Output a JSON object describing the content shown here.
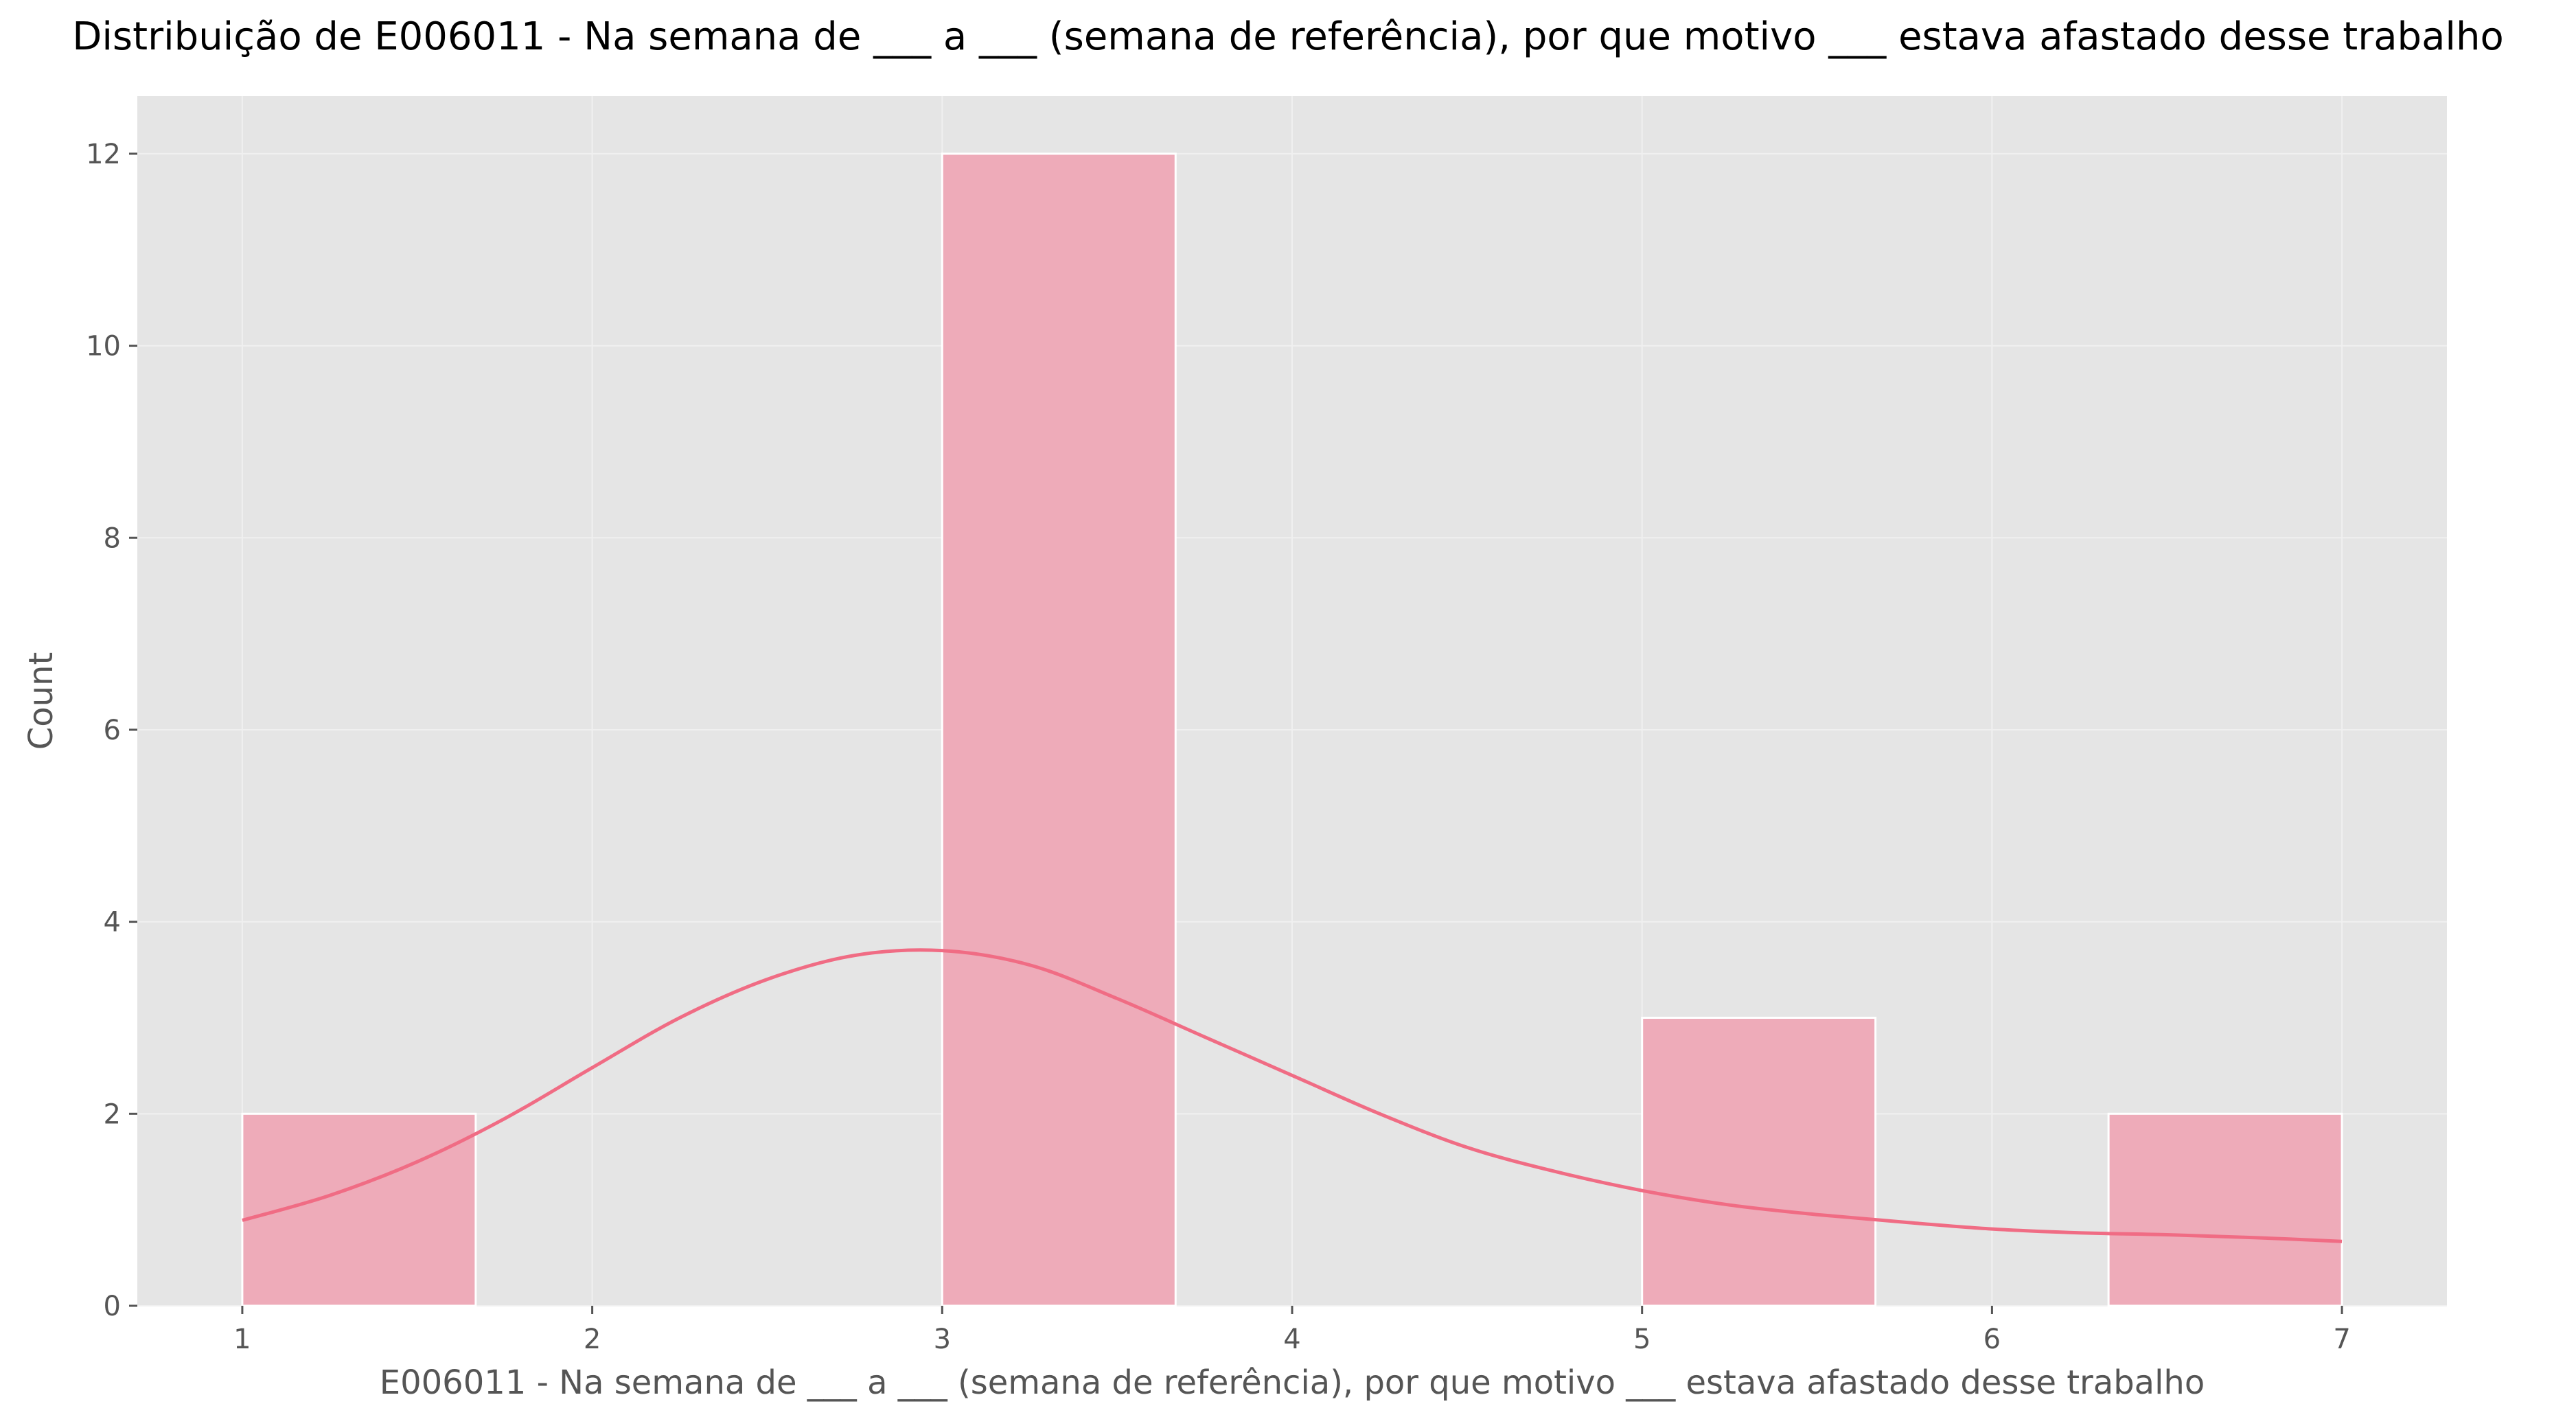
{
  "chart_data": {
    "type": "bar",
    "title": "Distribuição de E006011 - Na semana de ___ a ___ (semana de referência), por que motivo ___ estava afastado desse trabalho",
    "xlabel": "E006011 - Na semana de ___ a ___ (semana de referência), por que motivo ___ estava afastado desse trabalho",
    "ylabel": "Count",
    "xlim": [
      0.7,
      7.3
    ],
    "ylim": [
      0,
      12.6
    ],
    "x_ticks": [
      "1",
      "2",
      "3",
      "4",
      "5",
      "6",
      "7"
    ],
    "y_ticks": [
      "0",
      "2",
      "4",
      "6",
      "8",
      "10",
      "12"
    ],
    "grid": true,
    "bins": [
      {
        "x_start": 1.0,
        "x_end": 1.667,
        "count": 2
      },
      {
        "x_start": 1.667,
        "x_end": 2.333,
        "count": 0
      },
      {
        "x_start": 2.333,
        "x_end": 3.0,
        "count": 0
      },
      {
        "x_start": 3.0,
        "x_end": 3.667,
        "count": 12
      },
      {
        "x_start": 3.667,
        "x_end": 4.333,
        "count": 0
      },
      {
        "x_start": 4.333,
        "x_end": 5.0,
        "count": 0
      },
      {
        "x_start": 5.0,
        "x_end": 5.667,
        "count": 3
      },
      {
        "x_start": 5.667,
        "x_end": 6.333,
        "count": 0
      },
      {
        "x_start": 6.333,
        "x_end": 7.0,
        "count": 2
      }
    ],
    "kde": {
      "x": [
        1.0,
        1.25,
        1.5,
        1.75,
        2.0,
        2.25,
        2.5,
        2.75,
        3.0,
        3.25,
        3.5,
        3.75,
        4.0,
        4.25,
        4.5,
        4.75,
        5.0,
        5.25,
        5.5,
        5.75,
        6.0,
        6.25,
        6.5,
        6.75,
        7.0
      ],
      "y": [
        0.89,
        1.15,
        1.5,
        1.95,
        2.48,
        3.0,
        3.4,
        3.65,
        3.7,
        3.55,
        3.2,
        2.8,
        2.4,
        2.0,
        1.65,
        1.4,
        1.2,
        1.05,
        0.95,
        0.87,
        0.8,
        0.76,
        0.74,
        0.71,
        0.67
      ]
    },
    "colors": {
      "bar_fill": "#eeabb9",
      "bar_stroke": "#ffffff",
      "kde_line": "#f06c84",
      "plot_background": "#e5e5e5",
      "grid": "#f0f0f0",
      "tick": "#555555"
    }
  }
}
